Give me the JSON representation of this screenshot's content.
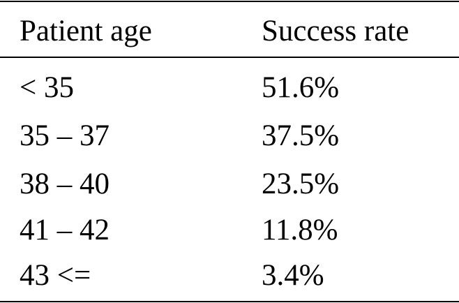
{
  "table": {
    "headers": [
      "Patient age",
      "Success rate"
    ],
    "rows": [
      [
        "< 35",
        "51.6%"
      ],
      [
        "35 – 37",
        "37.5%"
      ],
      [
        "38 – 40",
        "23.5%"
      ],
      [
        "41 – 42",
        "11.8%"
      ],
      [
        "43 <=",
        "3.4%"
      ]
    ]
  }
}
